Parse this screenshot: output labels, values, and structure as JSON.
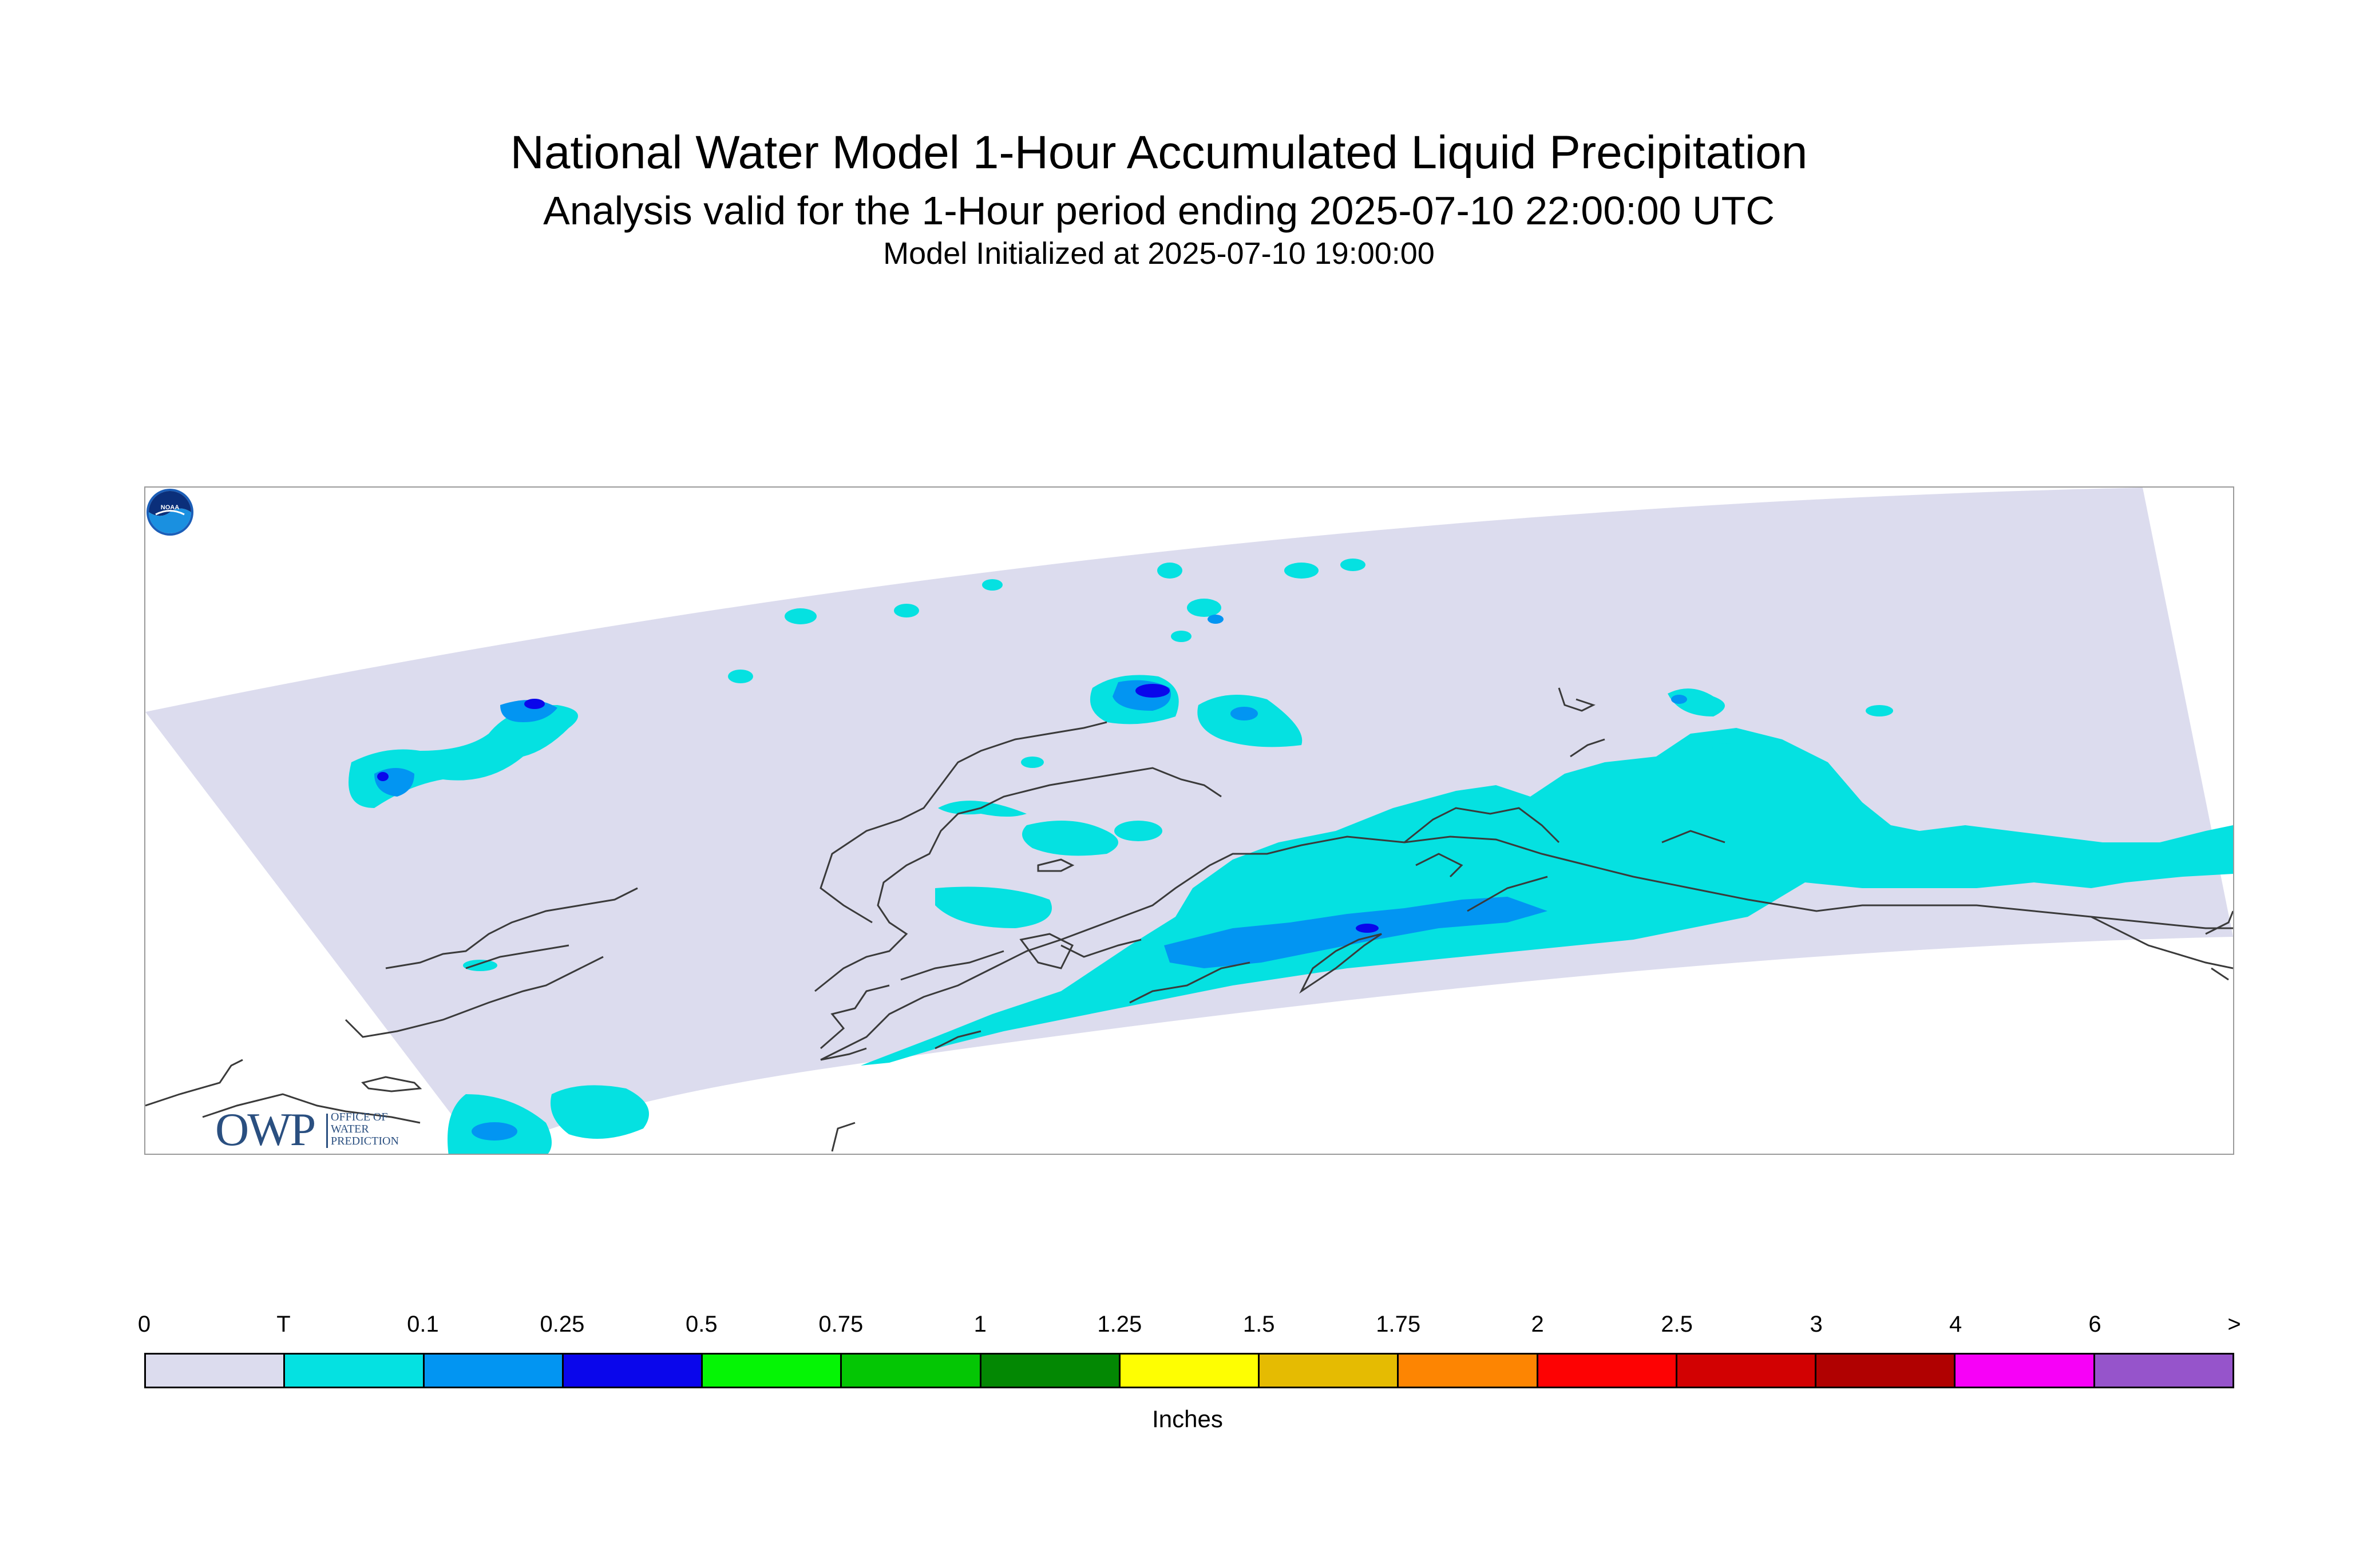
{
  "header": {
    "title": "National Water Model 1-Hour Accumulated Liquid Precipitation",
    "subtitle": "Analysis valid for the 1-Hour period ending 2025-07-10 22:00:00 UTC",
    "init_line": "Model Initialized at 2025-07-10 19:00:00"
  },
  "map": {
    "region": "Alaska",
    "logo_left": {
      "text": "OWP",
      "small_lines": [
        "OFFICE OF",
        "WATER",
        "PREDICTION"
      ]
    },
    "logo_right": {
      "text": "NOAA",
      "icon": "noaa-logo-icon"
    },
    "colors": {
      "domain": "#dcdcee",
      "trace": "#05e1e1",
      "tenth": "#0295f2",
      "quarter": "#0a06eb",
      "coast": "#3a3a3a"
    }
  },
  "colorbar": {
    "labels": [
      "0",
      "T",
      "0.1",
      "0.25",
      "0.5",
      "0.75",
      "1",
      "1.25",
      "1.5",
      "1.75",
      "2",
      "2.5",
      "3",
      "4",
      "6",
      ">"
    ],
    "colors": [
      "#dcdcee",
      "#05e1e1",
      "#0295f2",
      "#0a06eb",
      "#05f505",
      "#04c604",
      "#038803",
      "#fefe02",
      "#e5bb02",
      "#fd8502",
      "#fd0203",
      "#d20102",
      "#b00101",
      "#f701f7",
      "#9654cb"
    ],
    "units": "Inches"
  }
}
